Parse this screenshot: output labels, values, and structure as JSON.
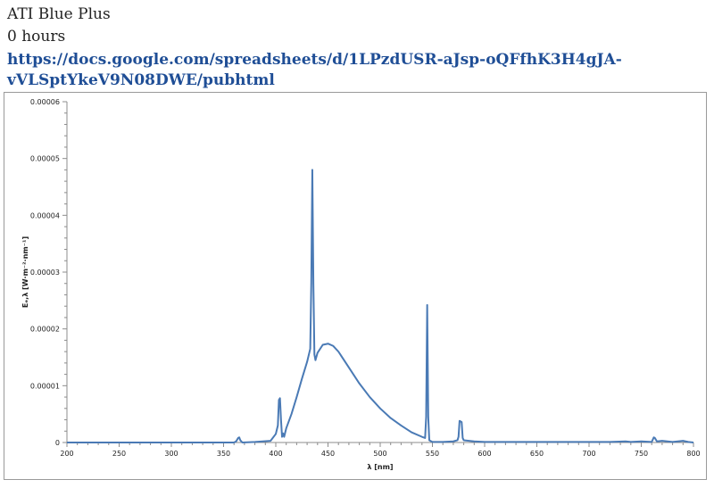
{
  "header": {
    "title": "ATI Blue Plus",
    "subtitle": "0 hours",
    "link": "https://docs.google.com/spreadsheets/d/1LPzdUSR-aJsp-oQFfhK3H4gJA-vVLSptYkeV9N08DWE/pubhtml"
  },
  "chart_data": {
    "type": "line",
    "title": "",
    "xlabel": "λ [nm]",
    "ylabel": "Eₑ,λ [W·m⁻²·nm⁻¹]",
    "xlim": [
      200,
      800
    ],
    "ylim": [
      0,
      6e-05
    ],
    "x_ticks": [
      200,
      250,
      300,
      350,
      400,
      450,
      500,
      550,
      600,
      650,
      700,
      750,
      800
    ],
    "y_ticks": [
      0,
      1e-05,
      2e-05,
      3e-05,
      4e-05,
      5e-05,
      6e-05
    ],
    "y_tick_labels": [
      "0",
      "0.00001",
      "0.00002",
      "0.00003",
      "0.00004",
      "0.00005",
      "0.00006"
    ],
    "grid": false,
    "line_color": "#4a7ab5",
    "series": [
      {
        "x": [
          200,
          300,
          360,
          362,
          364,
          365,
          366,
          368,
          380,
          395,
          400,
          402,
          403,
          404,
          405,
          406,
          407,
          408,
          410,
          415,
          420,
          425,
          430,
          433,
          434,
          435,
          436,
          437,
          438,
          440,
          445,
          450,
          455,
          460,
          470,
          480,
          490,
          500,
          510,
          520,
          530,
          540,
          543,
          544,
          545,
          546,
          547,
          550,
          560,
          570,
          574,
          575,
          576,
          577,
          578,
          579,
          580,
          590,
          600,
          650,
          690,
          700,
          720,
          735,
          740,
          750,
          760,
          762,
          763,
          765,
          770,
          780,
          790,
          795,
          800
        ],
        "y": [
          0,
          0,
          0,
          2e-07,
          8e-07,
          9e-07,
          4e-07,
          0,
          1e-07,
          3e-07,
          1.5e-06,
          3e-06,
          7.5e-06,
          7.8e-06,
          4e-06,
          1e-06,
          1.6e-06,
          1e-06,
          2.5e-06,
          5e-06,
          8e-06,
          1.12e-05,
          1.42e-05,
          1.65e-05,
          2.8e-05,
          4.8e-05,
          2.8e-05,
          1.55e-05,
          1.45e-05,
          1.58e-05,
          1.72e-05,
          1.74e-05,
          1.7e-05,
          1.6e-05,
          1.32e-05,
          1.04e-05,
          8e-06,
          6e-06,
          4.3e-06,
          3e-06,
          1.8e-06,
          1e-06,
          8e-07,
          4.5e-06,
          2.42e-05,
          4.5e-06,
          4e-07,
          1e-07,
          1e-07,
          2e-07,
          4e-07,
          1e-06,
          3.8e-06,
          3.7e-06,
          3.6e-06,
          8e-07,
          4e-07,
          2e-07,
          1e-07,
          1e-07,
          1e-07,
          1e-07,
          1e-07,
          2e-07,
          1e-07,
          2e-07,
          1e-07,
          9e-07,
          8e-07,
          2e-07,
          3e-07,
          1e-07,
          3e-07,
          1e-07,
          0
        ]
      }
    ]
  }
}
